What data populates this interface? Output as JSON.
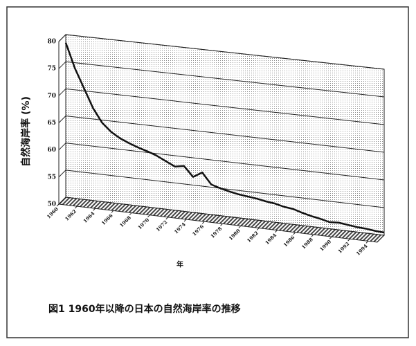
{
  "chart_data": {
    "type": "line",
    "y_label": "自然海岸率 (%)",
    "x_label": "年",
    "caption": "図1 1960年以降の日本の自然海岸率の推移",
    "x": [
      1960,
      1961,
      1962,
      1963,
      1964,
      1965,
      1966,
      1967,
      1968,
      1969,
      1970,
      1971,
      1972,
      1973,
      1974,
      1975,
      1976,
      1977,
      1978,
      1979,
      1980,
      1981,
      1982,
      1983,
      1984,
      1985,
      1986,
      1987,
      1988,
      1989,
      1990,
      1991,
      1992,
      1993,
      1994,
      1995
    ],
    "series": [
      {
        "name": "自然海岸率",
        "color": "#111111",
        "values": [
          78.5,
          74,
          70.5,
          67,
          64.5,
          63,
          62,
          61.3,
          60.7,
          60.2,
          59.6,
          58.8,
          58,
          58.3,
          56.5,
          57.5,
          55.5,
          55,
          54.6,
          54.3,
          54.1,
          53.9,
          53.6,
          53.4,
          53,
          52.8,
          52.3,
          51.9,
          51.6,
          51.2,
          51.3,
          51.1,
          50.9,
          50.8,
          50.6,
          50.5
        ]
      }
    ],
    "xlim": [
      1960,
      1995
    ],
    "xticks": [
      1960,
      1962,
      1964,
      1966,
      1968,
      1970,
      1972,
      1974,
      1976,
      1978,
      1980,
      1982,
      1984,
      1986,
      1988,
      1990,
      1992,
      1994
    ],
    "ylim": [
      50,
      80
    ],
    "yticks": [
      50,
      55,
      60,
      65,
      70,
      75,
      80
    ],
    "grid": true
  }
}
